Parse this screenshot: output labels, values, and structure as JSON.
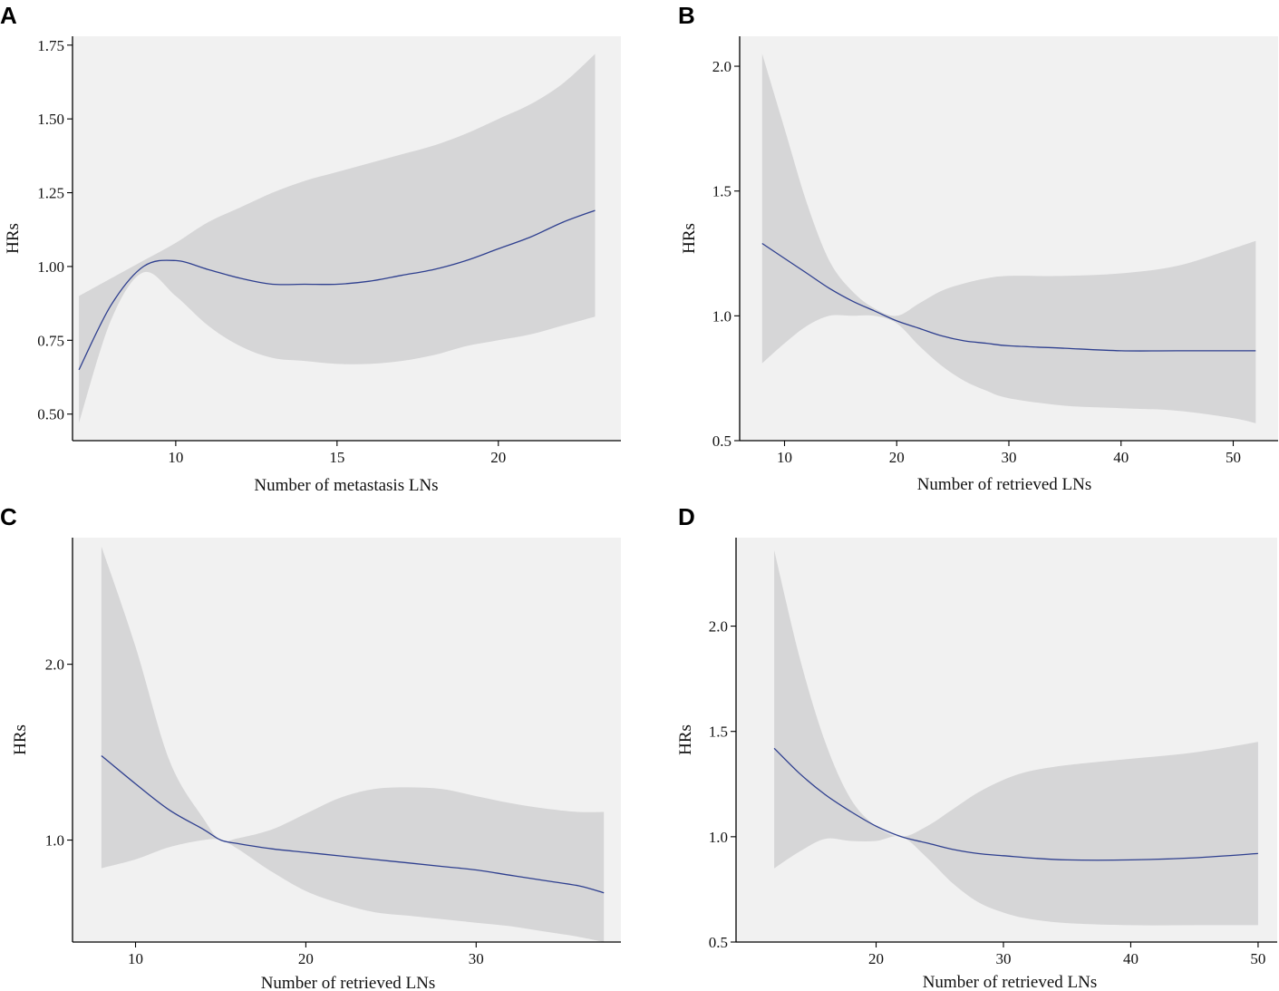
{
  "chart_data": [
    {
      "panel": "A",
      "type": "line",
      "title": "",
      "xlabel": "Number of metastasis LNs",
      "ylabel": "HRs",
      "xlim": [
        6.8,
        23.8
      ],
      "ylim": [
        0.41,
        1.78
      ],
      "xticks": [
        10,
        15,
        20
      ],
      "yticks": [
        0.5,
        0.75,
        1.0,
        1.25,
        1.5,
        1.75
      ],
      "ytick_labels": [
        "0.50",
        "0.75",
        "1.00",
        "1.25",
        "1.50",
        "1.75"
      ],
      "x": [
        7,
        8,
        9,
        10,
        11,
        12,
        13,
        14,
        15,
        16,
        17,
        18,
        19,
        20,
        21,
        22,
        23
      ],
      "hr": [
        0.65,
        0.87,
        1.0,
        1.02,
        0.99,
        0.96,
        0.94,
        0.94,
        0.94,
        0.95,
        0.97,
        0.99,
        1.02,
        1.06,
        1.1,
        1.15,
        1.19
      ],
      "lower": [
        0.47,
        0.82,
        0.98,
        0.9,
        0.8,
        0.73,
        0.69,
        0.68,
        0.67,
        0.67,
        0.68,
        0.7,
        0.73,
        0.75,
        0.77,
        0.8,
        0.83
      ],
      "upper": [
        0.9,
        0.96,
        1.02,
        1.08,
        1.15,
        1.2,
        1.25,
        1.29,
        1.32,
        1.35,
        1.38,
        1.41,
        1.45,
        1.5,
        1.55,
        1.62,
        1.72
      ]
    },
    {
      "panel": "B",
      "type": "line",
      "title": "",
      "xlabel": "Number of retrieved LNs",
      "ylabel": "HRs",
      "xlim": [
        6,
        54
      ],
      "ylim": [
        0.5,
        2.12
      ],
      "xticks": [
        10,
        20,
        30,
        40,
        50
      ],
      "yticks": [
        0.5,
        1.0,
        1.5,
        2.0
      ],
      "ytick_labels": [
        "0.5",
        "1.0",
        "1.5",
        "2.0"
      ],
      "x": [
        8,
        10,
        12,
        14,
        16,
        18,
        20,
        22,
        24,
        26,
        28,
        30,
        35,
        40,
        45,
        50,
        52
      ],
      "hr": [
        1.29,
        1.23,
        1.17,
        1.11,
        1.06,
        1.02,
        0.98,
        0.95,
        0.92,
        0.9,
        0.89,
        0.88,
        0.87,
        0.86,
        0.86,
        0.86,
        0.86
      ],
      "lower": [
        0.81,
        0.89,
        0.96,
        1.0,
        1.0,
        1.0,
        0.97,
        0.88,
        0.8,
        0.74,
        0.7,
        0.67,
        0.64,
        0.63,
        0.62,
        0.59,
        0.57
      ],
      "upper": [
        2.05,
        1.75,
        1.45,
        1.22,
        1.1,
        1.03,
        1.0,
        1.05,
        1.1,
        1.13,
        1.15,
        1.16,
        1.16,
        1.17,
        1.2,
        1.27,
        1.3
      ]
    },
    {
      "panel": "C",
      "type": "line",
      "title": "",
      "xlabel": "Number of retrieved LNs",
      "ylabel": "HRs",
      "xlim": [
        6.3,
        38.5
      ],
      "ylim": [
        0.42,
        2.72
      ],
      "xticks": [
        10,
        20,
        30
      ],
      "yticks": [
        1.0,
        2.0
      ],
      "ytick_labels": [
        "1.0",
        "2.0"
      ],
      "x": [
        8,
        10,
        12,
        14,
        15,
        16,
        18,
        20,
        22,
        24,
        26,
        28,
        30,
        32,
        34,
        36,
        37.5
      ],
      "hr": [
        1.48,
        1.32,
        1.17,
        1.06,
        1.0,
        0.98,
        0.95,
        0.93,
        0.91,
        0.89,
        0.87,
        0.85,
        0.83,
        0.8,
        0.77,
        0.74,
        0.7
      ],
      "lower": [
        0.84,
        0.89,
        0.96,
        1.0,
        1.0,
        0.95,
        0.82,
        0.71,
        0.64,
        0.59,
        0.57,
        0.55,
        0.53,
        0.51,
        0.48,
        0.45,
        0.42
      ],
      "upper": [
        2.67,
        2.1,
        1.45,
        1.12,
        1.0,
        1.01,
        1.06,
        1.15,
        1.24,
        1.29,
        1.3,
        1.29,
        1.25,
        1.21,
        1.18,
        1.16,
        1.16
      ]
    },
    {
      "panel": "D",
      "type": "line",
      "title": "",
      "xlabel": "Number of retrieved LNs",
      "ylabel": "HRs",
      "xlim": [
        9,
        51.5
      ],
      "ylim": [
        0.5,
        2.42
      ],
      "xticks": [
        20,
        30,
        40,
        50
      ],
      "yticks": [
        0.5,
        1.0,
        1.5,
        2.0
      ],
      "ytick_labels": [
        "0.5",
        "1.0",
        "1.5",
        "2.0"
      ],
      "x": [
        12,
        14,
        16,
        18,
        20,
        22,
        24,
        26,
        28,
        30,
        32,
        35,
        40,
        45,
        50
      ],
      "hr": [
        1.42,
        1.3,
        1.2,
        1.12,
        1.05,
        1.0,
        0.97,
        0.94,
        0.92,
        0.91,
        0.9,
        0.89,
        0.89,
        0.9,
        0.92
      ],
      "lower": [
        0.85,
        0.93,
        0.99,
        0.98,
        0.98,
        1.0,
        0.9,
        0.78,
        0.69,
        0.64,
        0.61,
        0.59,
        0.58,
        0.58,
        0.58
      ],
      "upper": [
        2.36,
        1.85,
        1.45,
        1.18,
        1.05,
        1.0,
        1.05,
        1.13,
        1.21,
        1.27,
        1.31,
        1.34,
        1.37,
        1.4,
        1.45
      ]
    }
  ]
}
